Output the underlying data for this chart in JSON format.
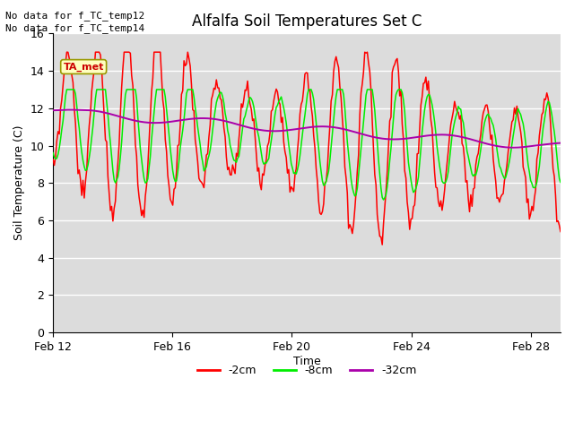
{
  "title": "Alfalfa Soil Temperatures Set C",
  "ylabel": "Soil Temperature (C)",
  "xlabel": "Time",
  "top_note1": "No data for f_TC_temp12",
  "top_note2": "No data for f_TC_temp14",
  "ta_met_label": "TA_met",
  "legend_labels": [
    "-2cm",
    "-8cm",
    "-32cm"
  ],
  "legend_colors": [
    "#ff0000",
    "#00ee00",
    "#aa00aa"
  ],
  "ylim": [
    0,
    16
  ],
  "yticks": [
    0,
    2,
    4,
    6,
    8,
    10,
    12,
    14,
    16
  ],
  "xtick_labels": [
    "Feb 12",
    "Feb 16",
    "Feb 20",
    "Feb 24",
    "Feb 28"
  ],
  "xtick_positions": [
    0,
    4,
    8,
    12,
    16
  ],
  "xlim": [
    0,
    17
  ],
  "bg_color": "#dcdcdc",
  "fig_color": "#ffffff",
  "grid_color": "#ffffff",
  "note_fontsize": 8,
  "title_fontsize": 12,
  "axis_fontsize": 9,
  "tick_fontsize": 9
}
